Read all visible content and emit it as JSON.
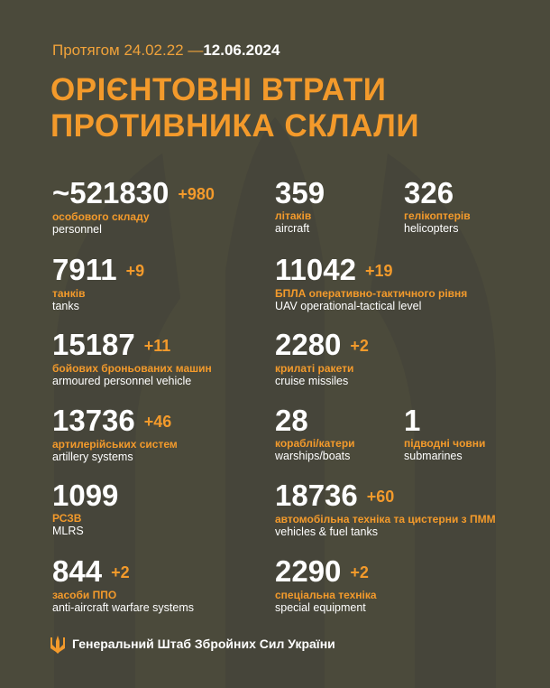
{
  "header": {
    "period": "Протягом 24.02.22 —",
    "date": "12.06.2024"
  },
  "title": [
    "ОРІЄНТОВНІ ВТРАТИ",
    "ПРОТИВНИКА СКЛАЛИ"
  ],
  "rows": [
    [
      {
        "number": "~521830",
        "delta": "+980",
        "label": "особового складу",
        "label_en": "personnel"
      },
      {
        "number": "359",
        "label": "літаків",
        "label_en": "aircraft"
      },
      {
        "number": "326",
        "label": "гелікоптерів",
        "label_en": "helicopters"
      }
    ],
    [
      {
        "number": "7911",
        "delta": "+9",
        "label": "танків",
        "label_en": "tanks"
      },
      {
        "number": "11042",
        "delta": "+19",
        "label": "БПЛА оперативно-тактичного рівня",
        "label_en": "UAV operational-tactical level"
      }
    ],
    [
      {
        "number": "15187",
        "delta": "+11",
        "label": "бойових броньованих машин",
        "label_en": "armoured personnel vehicle"
      },
      {
        "number": "2280",
        "delta": "+2",
        "label": "крилаті ракети",
        "label_en": "cruise missiles"
      }
    ],
    [
      {
        "number": "13736",
        "delta": "+46",
        "label": "артилерійських систем",
        "label_en": "artillery systems"
      },
      {
        "number": "28",
        "label": "кораблі/катери",
        "label_en": "warships/boats"
      },
      {
        "number": "1",
        "label": "підводні човни",
        "label_en": "submarines"
      }
    ],
    [
      {
        "number": "1099",
        "label": "РСЗВ",
        "label_en": "MLRS"
      },
      {
        "number": "18736",
        "delta": "+60",
        "label": "автомобільна техніка та цистерни з ПММ",
        "label_en": "vehicles & fuel tanks"
      }
    ],
    [
      {
        "number": "844",
        "delta": "+2",
        "label": "засоби ППО",
        "label_en": "anti-aircraft warfare systems"
      },
      {
        "number": "2290",
        "delta": "+2",
        "label": "спеціальна техніка",
        "label_en": "special equipment"
      }
    ]
  ],
  "footer": "Генеральний Штаб Збройних Сил України"
}
